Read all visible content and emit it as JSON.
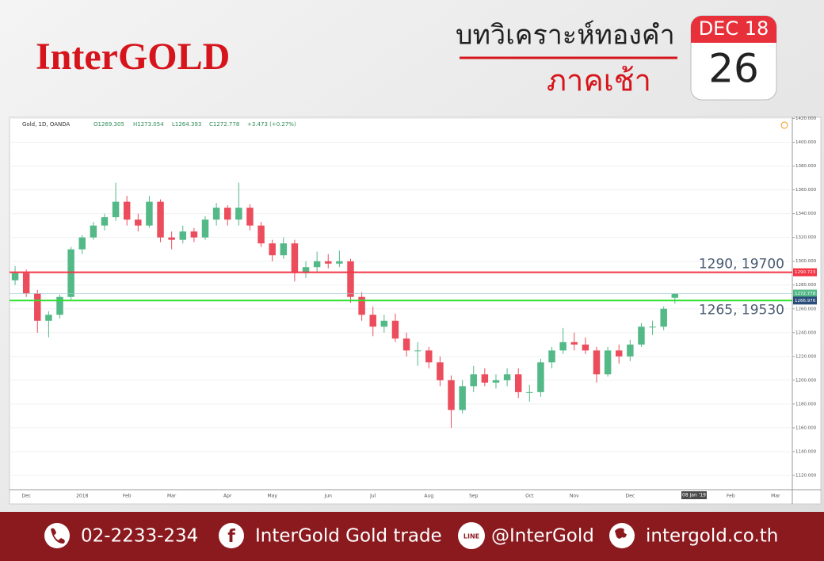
{
  "header": {
    "brand": "InterGOLD",
    "title": "บทวิเคราะห์ทองคำ",
    "subtitle": "ภาคเช้า",
    "calendar_month": "DEC 18",
    "calendar_day": "26"
  },
  "chart_data": {
    "type": "candlestick",
    "symbol": "Gold, 1D, OANDA",
    "open_label": "O1269.305",
    "high_label": "H1273.054",
    "low_label": "L1264.393",
    "close_label": "C1272.778",
    "change_label": "+3.473 (+0.27%)",
    "crosshair_label": "08 Jan '19",
    "categories": [
      null,
      "Dec",
      null,
      null,
      null,
      null,
      "2018",
      null,
      null,
      null,
      "Feb",
      null,
      null,
      null,
      "Mar",
      null,
      null,
      null,
      null,
      "Apr",
      null,
      null,
      null,
      "May",
      null,
      null,
      null,
      null,
      "Jun",
      null,
      null,
      null,
      "Jul",
      null,
      null,
      null,
      null,
      "Aug",
      null,
      null,
      null,
      "Sep",
      null,
      null,
      null,
      null,
      "Oct",
      null,
      null,
      null,
      "Nov",
      null,
      null,
      null,
      null,
      "Dec",
      null,
      null,
      null,
      null,
      null,
      null,
      null,
      null,
      "Feb",
      null,
      null,
      null,
      "Mar",
      null
    ],
    "open": [
      1284,
      1290,
      1273,
      1250,
      1255,
      1270,
      1310,
      1320,
      1330,
      1337,
      1350,
      1335,
      1330,
      1350,
      1320,
      1318,
      1325,
      1320,
      1335,
      1345,
      1335,
      1345,
      1330,
      1315,
      1305,
      1315,
      1290,
      1295,
      1300,
      1298,
      1300,
      1270,
      1255,
      1245,
      1250,
      1235,
      1225,
      1225,
      1215,
      1200,
      1175,
      1195,
      1205,
      1198,
      1200,
      1205,
      1190,
      1190,
      1215,
      1225,
      1232,
      1230,
      1225,
      1205,
      1225,
      1220,
      1230,
      1245,
      1245,
      1269.305,
      null,
      null,
      null,
      null,
      null,
      null,
      null,
      null,
      null,
      null
    ],
    "high": [
      1296,
      1293,
      1276,
      1258,
      1272,
      1312,
      1322,
      1333,
      1340,
      1366,
      1355,
      1340,
      1355,
      1352,
      1325,
      1330,
      1328,
      1338,
      1349,
      1347,
      1366,
      1348,
      1333,
      1318,
      1320,
      1318,
      1300,
      1308,
      1306,
      1309,
      1302,
      1274,
      1262,
      1255,
      1256,
      1240,
      1232,
      1228,
      1220,
      1204,
      1200,
      1212,
      1210,
      1205,
      1210,
      1210,
      1196,
      1218,
      1228,
      1244,
      1240,
      1236,
      1228,
      1228,
      1230,
      1234,
      1248,
      1250,
      1262,
      1273.054,
      null,
      null,
      null,
      null,
      null,
      null,
      null,
      null,
      null,
      null
    ],
    "low": [
      1280,
      1270,
      1240,
      1236,
      1252,
      1268,
      1306,
      1318,
      1326,
      1334,
      1330,
      1325,
      1328,
      1316,
      1310,
      1315,
      1316,
      1318,
      1330,
      1330,
      1330,
      1326,
      1312,
      1300,
      1302,
      1283,
      1286,
      1290,
      1294,
      1295,
      1265,
      1250,
      1237,
      1240,
      1232,
      1220,
      1212,
      1210,
      1195,
      1160,
      1172,
      1190,
      1195,
      1193,
      1195,
      1185,
      1182,
      1186,
      1210,
      1222,
      1225,
      1222,
      1198,
      1203,
      1214,
      1216,
      1228,
      1238,
      1242,
      1264.393,
      null,
      null,
      null,
      null,
      null,
      null,
      null,
      null,
      null,
      null
    ],
    "close": [
      1290,
      1273,
      1250,
      1255,
      1270,
      1310,
      1320,
      1330,
      1337,
      1350,
      1335,
      1330,
      1350,
      1320,
      1318,
      1325,
      1320,
      1335,
      1345,
      1335,
      1345,
      1330,
      1315,
      1305,
      1315,
      1290,
      1295,
      1300,
      1298,
      1300,
      1270,
      1255,
      1245,
      1250,
      1235,
      1225,
      1225,
      1215,
      1200,
      1175,
      1195,
      1205,
      1198,
      1200,
      1205,
      1190,
      1190,
      1215,
      1225,
      1232,
      1230,
      1225,
      1205,
      1225,
      1220,
      1230,
      1245,
      1245,
      1260,
      1272.778,
      null,
      null,
      null,
      null,
      null,
      null,
      null,
      null,
      null,
      null
    ],
    "up_color": "#53b987",
    "down_color": "#eb4d5c",
    "ylim": [
      1108,
      1421
    ],
    "yticks": [
      {
        "value": 1120,
        "label": "1120.000"
      },
      {
        "value": 1140,
        "label": "1140.000"
      },
      {
        "value": 1160,
        "label": "1160.000"
      },
      {
        "value": 1180,
        "label": "1180.000"
      },
      {
        "value": 1200,
        "label": "1200.000"
      },
      {
        "value": 1220,
        "label": "1220.000"
      },
      {
        "value": 1240,
        "label": "1240.000"
      },
      {
        "value": 1260,
        "label": "1260.000"
      },
      {
        "value": 1280,
        "label": "1280.000"
      },
      {
        "value": 1300,
        "label": "1300.000"
      },
      {
        "value": 1320,
        "label": "1320.000"
      },
      {
        "value": 1340,
        "label": "1340.000"
      },
      {
        "value": 1360,
        "label": "1360.000"
      },
      {
        "value": 1380,
        "label": "1380.000"
      },
      {
        "value": 1400,
        "label": "1400.000"
      },
      {
        "value": 1420,
        "label": "1420.000"
      }
    ],
    "grid": true,
    "hlines": [
      {
        "value": 1290.723,
        "color": "#f23645",
        "label_color": "#f23645",
        "note": "1290, 19700"
      },
      {
        "value": 1266.976,
        "color": "#2ee02e",
        "label_color": "#2a4d7a",
        "note": "1265, 19530"
      }
    ]
  },
  "footer": {
    "phone": "02-2233-234",
    "facebook": "InterGold Gold trade",
    "line_icon": "LINE",
    "line": "@InterGold",
    "website": "intergold.co.th"
  }
}
